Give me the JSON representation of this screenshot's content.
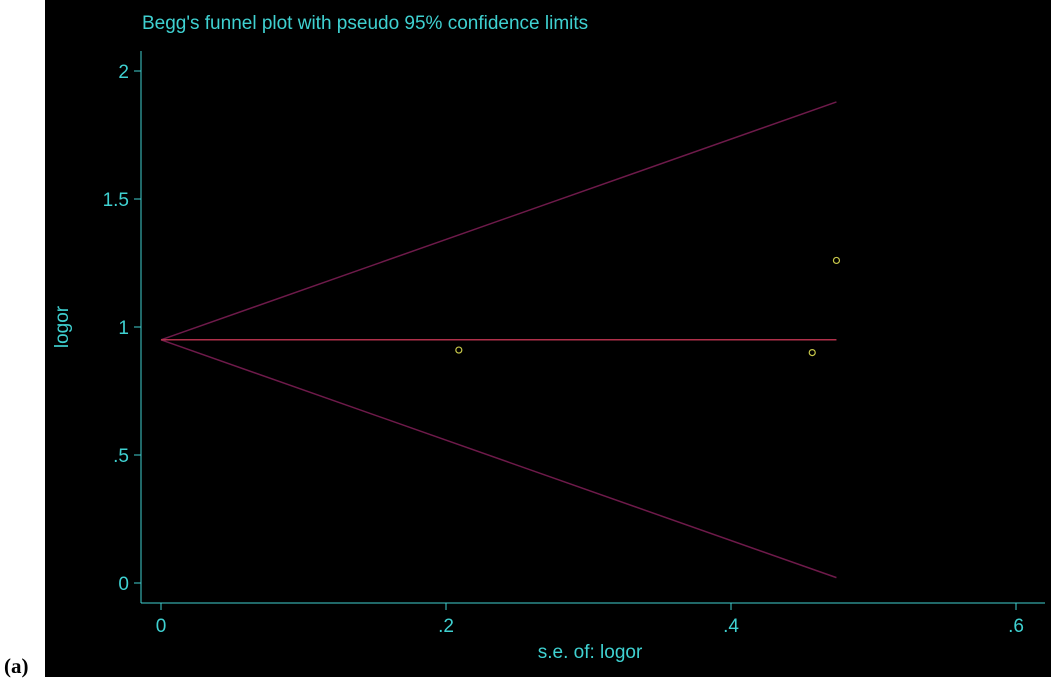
{
  "panel_label": "(a)",
  "colors": {
    "background": "#000000",
    "text": "#3fd1d1",
    "axis": "#3fd1d1",
    "limit_lines": "#6e1a4a",
    "pooled_line": "#b0304a",
    "points": "#c8c84a"
  },
  "chart_data": {
    "type": "scatter",
    "title": "Begg's funnel plot with pseudo 95% confidence limits",
    "xlabel": "s.e. of: logor",
    "ylabel": "logor",
    "xlim": [
      0,
      0.6
    ],
    "ylim": [
      0,
      2
    ],
    "xticks": [
      0,
      0.2,
      0.4,
      0.6
    ],
    "xtick_labels": [
      "0",
      ".2",
      ".4",
      ".6"
    ],
    "yticks": [
      0,
      0.5,
      1,
      1.5,
      2
    ],
    "ytick_labels": [
      "0",
      ".5",
      "1",
      "1.5",
      "2"
    ],
    "grid": false,
    "pooled_estimate": 0.95,
    "limits_se_max": 0.474,
    "points": [
      {
        "x": 0.209,
        "y": 0.91
      },
      {
        "x": 0.457,
        "y": 0.9
      },
      {
        "x": 0.474,
        "y": 1.26
      }
    ]
  }
}
